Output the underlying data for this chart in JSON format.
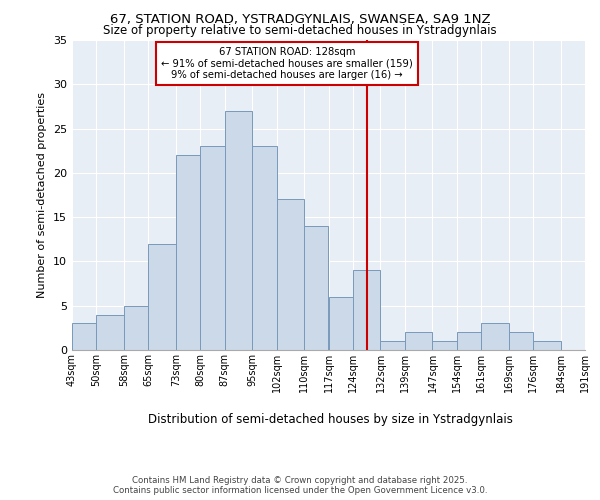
{
  "title1": "67, STATION ROAD, YSTRADGYNLAIS, SWANSEA, SA9 1NZ",
  "title2": "Size of property relative to semi-detached houses in Ystradgynlais",
  "xlabel": "Distribution of semi-detached houses by size in Ystradgynlais",
  "ylabel": "Number of semi-detached properties",
  "bar_values": [
    3,
    4,
    5,
    12,
    22,
    23,
    27,
    23,
    17,
    14,
    6,
    9,
    1,
    2,
    1,
    2,
    3,
    2,
    1
  ],
  "bin_starts": [
    43,
    50,
    58,
    65,
    73,
    80,
    87,
    95,
    102,
    110,
    117,
    124,
    132,
    139,
    147,
    154,
    161,
    169,
    176
  ],
  "bin_ends": [
    50,
    58,
    65,
    73,
    80,
    87,
    95,
    102,
    110,
    117,
    124,
    132,
    139,
    147,
    154,
    161,
    169,
    176,
    184
  ],
  "bin_labels": [
    "43sqm",
    "50sqm",
    "58sqm",
    "65sqm",
    "73sqm",
    "80sqm",
    "87sqm",
    "95sqm",
    "102sqm",
    "110sqm",
    "117sqm",
    "124sqm",
    "132sqm",
    "139sqm",
    "147sqm",
    "154sqm",
    "161sqm",
    "169sqm",
    "176sqm",
    "184sqm",
    "191sqm"
  ],
  "tick_positions": [
    43,
    50,
    58,
    65,
    73,
    80,
    87,
    95,
    102,
    110,
    117,
    124,
    132,
    139,
    147,
    154,
    161,
    169,
    176,
    184,
    191
  ],
  "bar_color": "#ccd9e8",
  "bar_edge_color": "#7799bb",
  "property_line_x": 128,
  "annotation_title": "67 STATION ROAD: 128sqm",
  "annotation_line1": "← 91% of semi-detached houses are smaller (159)",
  "annotation_line2": "9% of semi-detached houses are larger (16) →",
  "annotation_box_color": "#cc0000",
  "xlim_left": 43,
  "xlim_right": 191,
  "ylim": [
    0,
    35
  ],
  "yticks": [
    0,
    5,
    10,
    15,
    20,
    25,
    30,
    35
  ],
  "background_color": "#e8eef5",
  "grid_color": "#ffffff",
  "footer1": "Contains HM Land Registry data © Crown copyright and database right 2025.",
  "footer2": "Contains public sector information licensed under the Open Government Licence v3.0."
}
